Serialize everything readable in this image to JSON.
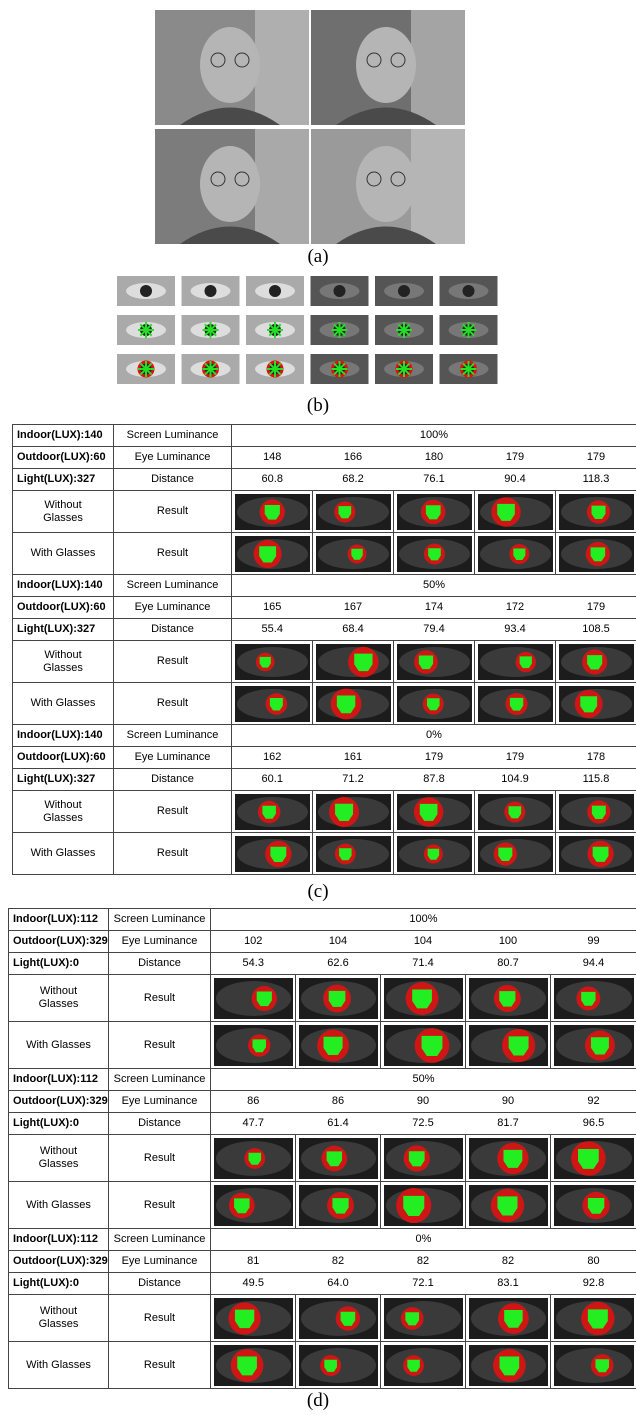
{
  "panel_a": {
    "label": "(a)"
  },
  "panel_b": {
    "label": "(b)"
  },
  "tables": [
    {
      "label": "(c)",
      "blocks": [
        {
          "conditions": [
            "Indoor(LUX):140",
            "Outdoor(LUX):60",
            "Light(LUX):327"
          ],
          "screen_label": "Screen Luminance",
          "screen_value": "100%",
          "eye_label": "Eye Luminance",
          "eye_luminance": [
            148,
            166,
            180,
            179,
            179
          ],
          "distance_label": "Distance",
          "distance": [
            "60.8",
            "68.2",
            "76.1",
            "90.4",
            "118.3"
          ],
          "rows": [
            {
              "label": "Without Glasses",
              "result": "Result"
            },
            {
              "label": "With Glasses",
              "result": "Result"
            }
          ]
        },
        {
          "conditions": [
            "Indoor(LUX):140",
            "Outdoor(LUX):60",
            "Light(LUX):327"
          ],
          "screen_label": "Screen Luminance",
          "screen_value": "50%",
          "eye_label": "Eye Luminance",
          "eye_luminance": [
            165,
            167,
            174,
            172,
            179
          ],
          "distance_label": "Distance",
          "distance": [
            "55.4",
            "68.4",
            "79.4",
            "93.4",
            "108.5"
          ],
          "rows": [
            {
              "label": "Without Glasses",
              "result": "Result"
            },
            {
              "label": "With Glasses",
              "result": "Result"
            }
          ]
        },
        {
          "conditions": [
            "Indoor(LUX):140",
            "Outdoor(LUX):60",
            "Light(LUX):327"
          ],
          "screen_label": "Screen Luminance",
          "screen_value": "0%",
          "eye_label": "Eye Luminance",
          "eye_luminance": [
            162,
            161,
            179,
            179,
            178
          ],
          "distance_label": "Distance",
          "distance": [
            "60.1",
            "71.2",
            "87.8",
            "104.9",
            "115.8"
          ],
          "rows": [
            {
              "label": "Without Glasses",
              "result": "Result"
            },
            {
              "label": "With Glasses",
              "result": "Result"
            }
          ]
        }
      ]
    },
    {
      "label": "(d)",
      "blocks": [
        {
          "conditions": [
            "Indoor(LUX):112",
            "Outdoor(LUX):329",
            "Light(LUX):0"
          ],
          "screen_label": "Screen Luminance",
          "screen_value": "100%",
          "eye_label": "Eye Luminance",
          "eye_luminance": [
            102,
            104,
            104,
            100,
            99
          ],
          "distance_label": "Distance",
          "distance": [
            "54.3",
            "62.6",
            "71.4",
            "80.7",
            "94.4"
          ],
          "rows": [
            {
              "label": "Without Glasses",
              "result": "Result"
            },
            {
              "label": "With Glasses",
              "result": "Result"
            }
          ]
        },
        {
          "conditions": [
            "Indoor(LUX):112",
            "Outdoor(LUX):329",
            "Light(LUX):0"
          ],
          "screen_label": "Screen Luminance",
          "screen_value": "50%",
          "eye_label": "Eye Luminance",
          "eye_luminance": [
            86,
            86,
            90,
            90,
            92
          ],
          "distance_label": "Distance",
          "distance": [
            "47.7",
            "61.4",
            "72.5",
            "81.7",
            "96.5"
          ],
          "rows": [
            {
              "label": "Without Glasses",
              "result": "Result"
            },
            {
              "label": "With Glasses",
              "result": "Result"
            }
          ]
        },
        {
          "conditions": [
            "Indoor(LUX):112",
            "Outdoor(LUX):329",
            "Light(LUX):0"
          ],
          "screen_label": "Screen Luminance",
          "screen_value": "0%",
          "eye_label": "Eye Luminance",
          "eye_luminance": [
            81,
            82,
            82,
            82,
            80
          ],
          "distance_label": "Distance",
          "distance": [
            "49.5",
            "64.0",
            "72.1",
            "83.1",
            "92.8"
          ],
          "rows": [
            {
              "label": "Without Glasses",
              "result": "Result"
            },
            {
              "label": "With Glasses",
              "result": "Result"
            }
          ]
        }
      ]
    }
  ]
}
